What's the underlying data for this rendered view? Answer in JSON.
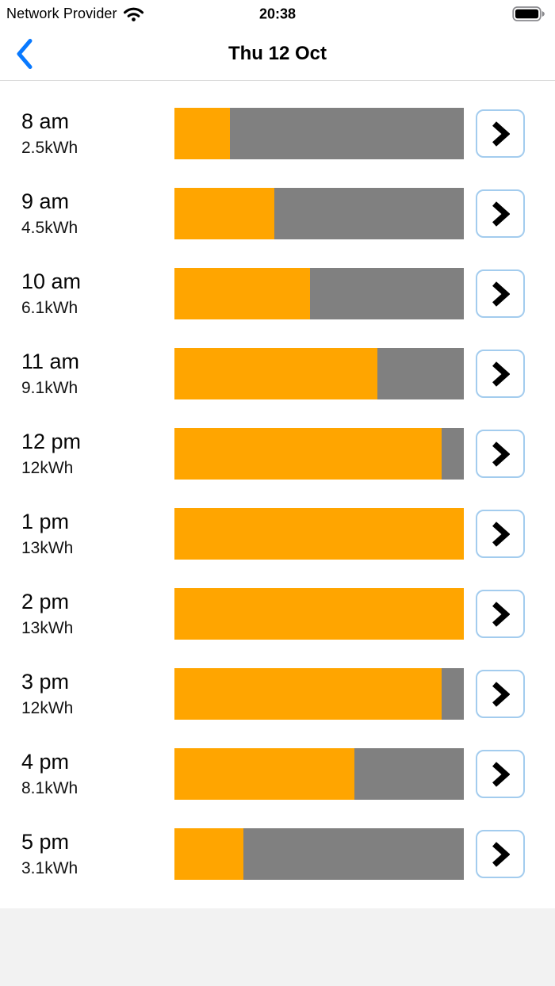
{
  "status_bar": {
    "carrier": "Network Provider",
    "time": "20:38",
    "wifi_icon": "wifi-icon",
    "battery_icon": "battery-full-icon"
  },
  "nav": {
    "title": "Thu 12 Oct",
    "back_icon": "chevron-left-icon"
  },
  "list": {
    "max_kwh": 13,
    "row_action_icon": "chevron-right-icon",
    "rows": [
      {
        "time": "8 am",
        "value_label": "2.5kWh",
        "kwh": 2.5
      },
      {
        "time": "9 am",
        "value_label": "4.5kWh",
        "kwh": 4.5
      },
      {
        "time": "10 am",
        "value_label": "6.1kWh",
        "kwh": 6.1
      },
      {
        "time": "11 am",
        "value_label": "9.1kWh",
        "kwh": 9.1
      },
      {
        "time": "12 pm",
        "value_label": "12kWh",
        "kwh": 12
      },
      {
        "time": "1 pm",
        "value_label": "13kWh",
        "kwh": 13
      },
      {
        "time": "2 pm",
        "value_label": "13kWh",
        "kwh": 13
      },
      {
        "time": "3 pm",
        "value_label": "12kWh",
        "kwh": 12
      },
      {
        "time": "4 pm",
        "value_label": "8.1kWh",
        "kwh": 8.1
      },
      {
        "time": "5 pm",
        "value_label": "3.1kWh",
        "kwh": 3.1
      }
    ]
  },
  "colors": {
    "bar_fill": "#FFA500",
    "bar_track": "#808080",
    "accent_blue": "#077AFF",
    "button_border": "#A3CCEE",
    "footer_bg": "#F2F2F2"
  },
  "chart_data": {
    "type": "bar",
    "title": "Thu 12 Oct",
    "categories": [
      "8 am",
      "9 am",
      "10 am",
      "11 am",
      "12 pm",
      "1 pm",
      "2 pm",
      "3 pm",
      "4 pm",
      "5 pm"
    ],
    "values": [
      2.5,
      4.5,
      6.1,
      9.1,
      12,
      13,
      13,
      12,
      8.1,
      3.1
    ],
    "ylabel": "kWh",
    "ylim": [
      0,
      13
    ],
    "orientation": "horizontal"
  }
}
